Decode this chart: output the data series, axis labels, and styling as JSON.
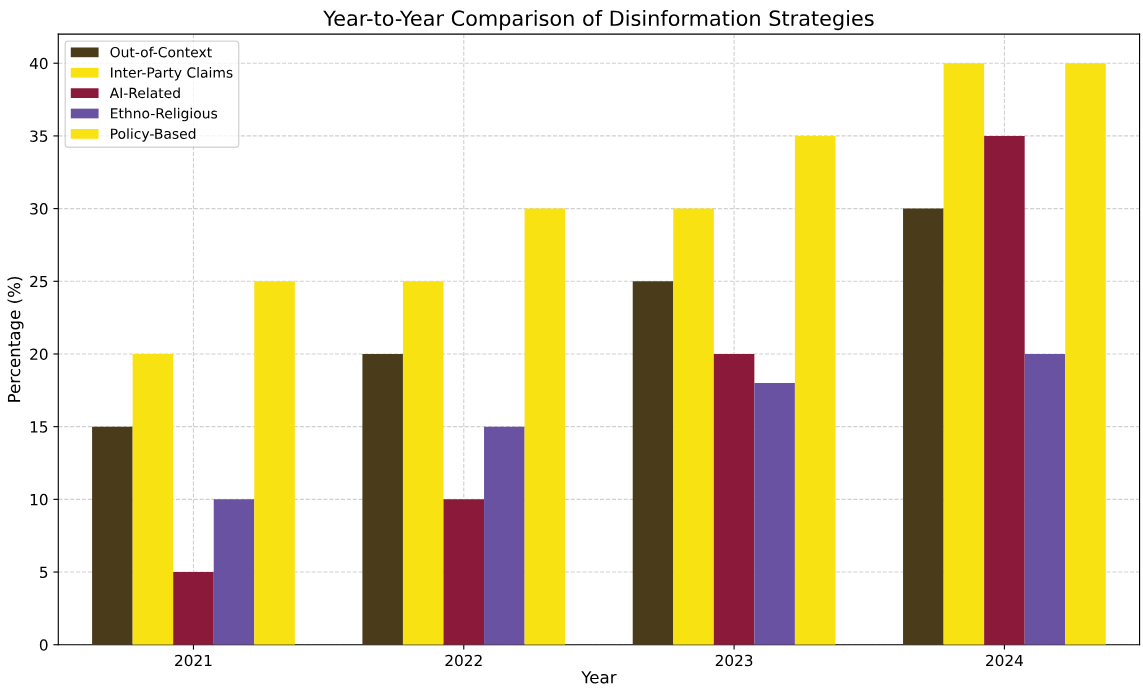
{
  "chart_data": {
    "type": "bar",
    "title": "Year-to-Year Comparison of Disinformation Strategies",
    "xlabel": "Year",
    "ylabel": "Percentage (%)",
    "categories": [
      "2021",
      "2022",
      "2023",
      "2024"
    ],
    "series": [
      {
        "name": "Out-of-Context",
        "color": "#4a3c1a",
        "values": [
          15,
          20,
          25,
          30
        ]
      },
      {
        "name": "Inter-Party Claims",
        "color": "#f9e211",
        "values": [
          20,
          25,
          30,
          40
        ]
      },
      {
        "name": "AI-Related",
        "color": "#8b1a3a",
        "values": [
          5,
          10,
          20,
          35
        ]
      },
      {
        "name": "Ethno-Religious",
        "color": "#6a52a3",
        "values": [
          10,
          15,
          18,
          20
        ]
      },
      {
        "name": "Policy-Based",
        "color": "#f9e211",
        "values": [
          25,
          30,
          35,
          40
        ]
      }
    ],
    "ylim": [
      0,
      42
    ],
    "yticks": [
      0,
      5,
      10,
      15,
      20,
      25,
      30,
      35,
      40
    ],
    "grid": true,
    "legend": "top left"
  }
}
